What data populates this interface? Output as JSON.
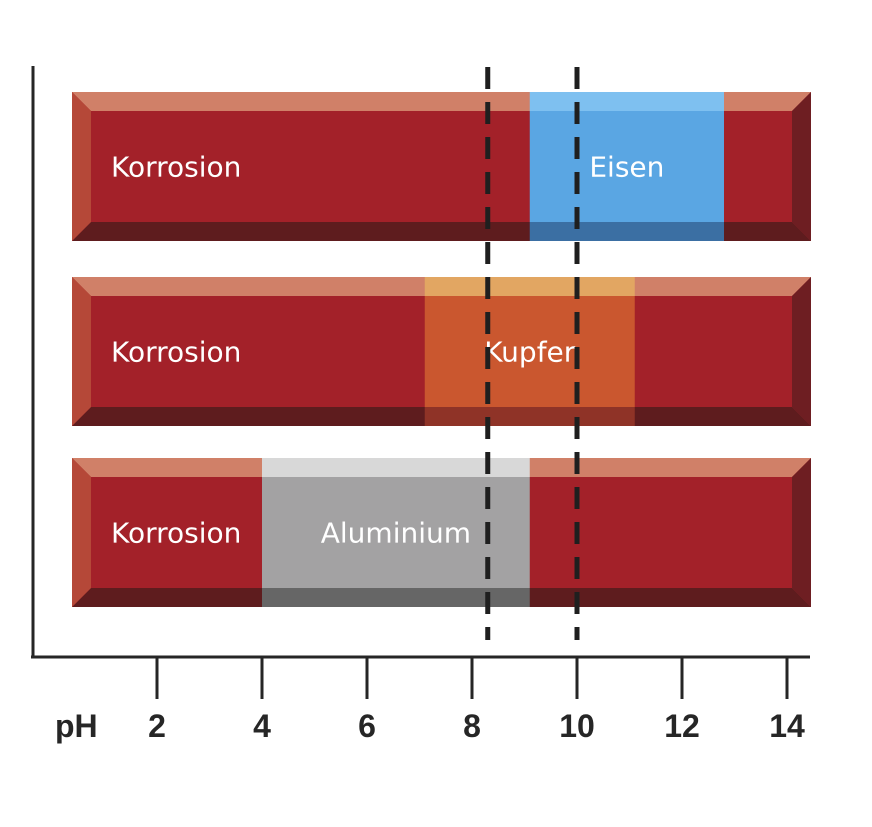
{
  "chart_data": {
    "type": "bar",
    "title": "",
    "xlabel": "pH",
    "ylabel": "",
    "xlim": [
      0,
      14
    ],
    "xticks": [
      2,
      4,
      6,
      8,
      10,
      12,
      14
    ],
    "grid": false,
    "legend": "none",
    "reference_lines": [
      8.3,
      10.0
    ],
    "rows": [
      {
        "metal": "Eisen",
        "background_label": "Korrosion",
        "passive_range": [
          9.1,
          12.8
        ],
        "color": "#5aa6e3",
        "color_top": "#7ec0f0",
        "color_bottom": "#3b6fa3"
      },
      {
        "metal": "Kupfer",
        "background_label": "Korrosion",
        "passive_range": [
          7.1,
          11.1
        ],
        "color": "#ca572f",
        "color_top": "#e2a662",
        "color_bottom": "#8f3327"
      },
      {
        "metal": "Aluminium",
        "background_label": "Korrosion",
        "passive_range": [
          4.0,
          9.1
        ],
        "color": "#a3a2a3",
        "color_top": "#d8d8d8",
        "color_bottom": "#666666"
      }
    ],
    "corrosion_color": "#a32129",
    "corrosion_top": "#d08068",
    "corrosion_bottom": "#5e1c1e",
    "corrosion_right": "#6e1e22"
  }
}
